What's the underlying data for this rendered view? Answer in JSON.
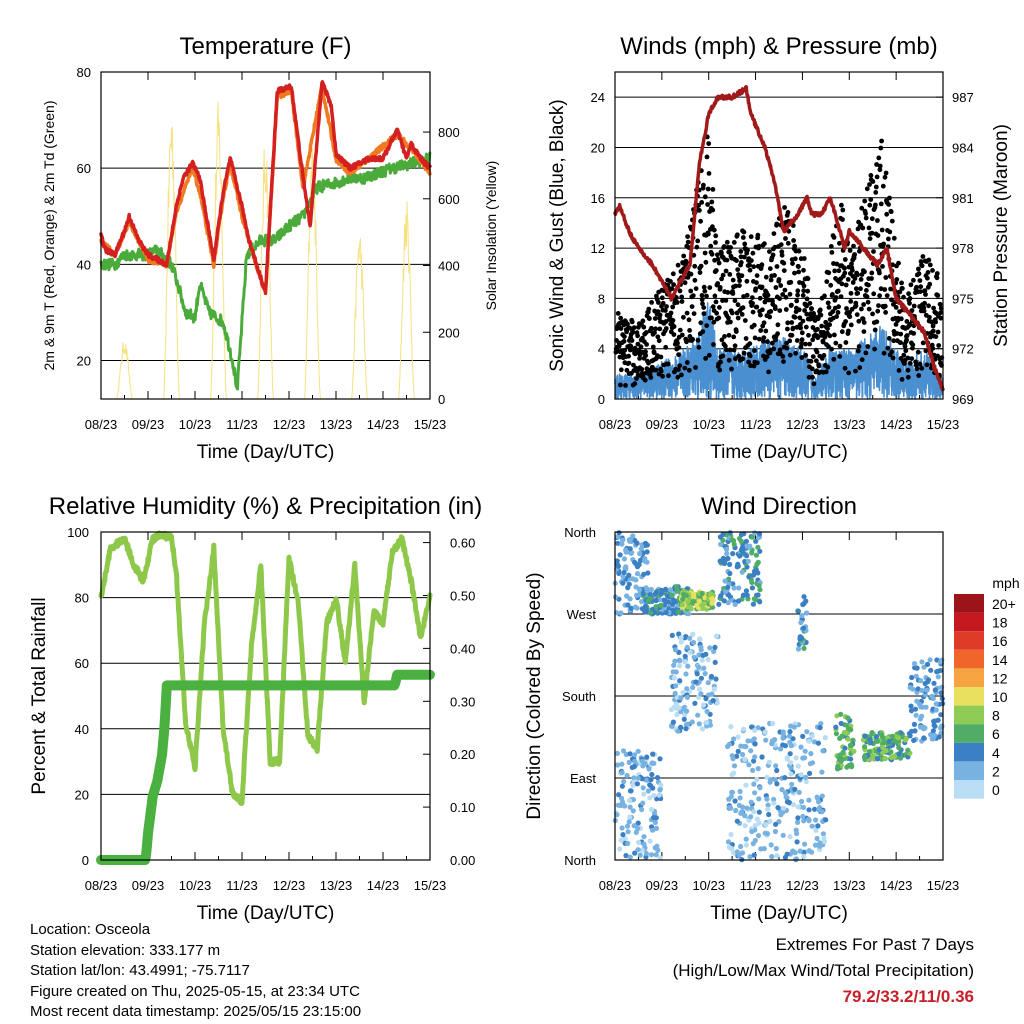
{
  "colors": {
    "temp_red": "#d42020",
    "temp_orange": "#f07a20",
    "dewpoint_green": "#4aaa3a",
    "solar_yellow": "#f5e07a",
    "wind_blue": "#4a90d0",
    "gust_black": "#000000",
    "pressure_maroon": "#a01a1a",
    "rh_green": "#8ec84a",
    "precip_green": "#4ab040",
    "extremes_red": "#c8202a"
  },
  "info": {
    "location": "Location: Osceola",
    "elevation": "Station elevation: 333.177 m",
    "latlon": "Station lat/lon: 43.4991; -75.7117",
    "created": "Figure created on Thu, 2025-05-15, at 23:34 UTC",
    "recent": "Most recent data timestamp: 2025/05/15 23:15:00"
  },
  "extremes": {
    "line1": "Extremes For Past 7 Days",
    "line2": "(High/Low/Max Wind/Total Precipitation)",
    "values": "79.2/33.2/11/0.36"
  },
  "chart_data": [
    {
      "id": "temperature",
      "type": "line",
      "title": "Temperature (F)",
      "xlabel": "Time (Day/UTC)",
      "ylabel": "2m & 9m T (Red, Orange) & 2m Td (Green)",
      "y2label": "Solar Insolation (Yellow)",
      "x_ticks": [
        "08/23",
        "09/23",
        "10/23",
        "11/23",
        "12/23",
        "13/23",
        "14/23",
        "15/23"
      ],
      "xlim": [
        0,
        7
      ],
      "ylim": [
        12,
        80
      ],
      "y_ticks": [
        20,
        40,
        60,
        80
      ],
      "y2lim": [
        0,
        980
      ],
      "y2_ticks": [
        0,
        200,
        400,
        600,
        800
      ],
      "grid": true,
      "series": [
        {
          "name": "2m T",
          "color": "#d42020",
          "x": [
            0,
            0.1,
            0.3,
            0.5,
            0.6,
            0.8,
            1.0,
            1.2,
            1.4,
            1.6,
            1.75,
            1.95,
            2.1,
            2.4,
            2.6,
            2.75,
            3.0,
            3.15,
            3.5,
            3.75,
            4.05,
            4.3,
            4.45,
            4.7,
            4.9,
            5.0,
            5.3,
            5.7,
            6.0,
            6.3,
            6.5,
            6.6,
            6.8,
            7.0
          ],
          "y": [
            46,
            43,
            42,
            47,
            50,
            45,
            42,
            41,
            40,
            52,
            58,
            61,
            58,
            41,
            55,
            62,
            52,
            45,
            34,
            76,
            77,
            58,
            48,
            78,
            73,
            63,
            60,
            62,
            62,
            68,
            62,
            65,
            62,
            60
          ]
        },
        {
          "name": "9m T",
          "color": "#f07a20",
          "x": [
            0,
            0.3,
            0.6,
            1.0,
            1.4,
            1.6,
            1.95,
            2.1,
            2.4,
            2.6,
            2.75,
            3.0,
            3.3,
            3.5,
            3.75,
            4.05,
            4.3,
            4.7,
            5.0,
            5.3,
            5.7,
            6.3,
            6.7,
            7.0
          ],
          "y": [
            45,
            42,
            49,
            41,
            40,
            51,
            60,
            55,
            40,
            54,
            61,
            50,
            40,
            34,
            75,
            76,
            56,
            77,
            62,
            59,
            62,
            67,
            63,
            59
          ]
        },
        {
          "name": "2m Td",
          "color": "#4aaa3a",
          "x": [
            0,
            0.3,
            0.5,
            0.8,
            1.0,
            1.2,
            1.5,
            1.6,
            1.8,
            2.0,
            2.1,
            2.3,
            2.6,
            2.8,
            2.9,
            3.1,
            3.4,
            3.7,
            4.0,
            4.3,
            4.6,
            5.0,
            5.3,
            5.6,
            5.9,
            6.2,
            6.6,
            7.0
          ],
          "y": [
            40,
            40,
            42,
            42,
            42,
            43,
            40,
            37,
            30,
            29,
            36,
            30,
            28,
            20,
            14,
            42,
            45,
            45,
            48,
            50,
            56,
            57,
            58,
            58,
            59,
            60,
            61,
            62
          ]
        },
        {
          "name": "Solar",
          "color": "#f5e07a",
          "axis": "y2",
          "peaks_x": [
            0.5,
            1.5,
            2.5,
            3.5,
            4.5,
            5.5,
            6.5
          ],
          "peaks_y": [
            180,
            900,
            900,
            800,
            780,
            520,
            600
          ]
        }
      ]
    },
    {
      "id": "winds",
      "type": "scatter",
      "title": "Winds (mph) & Pressure (mb)",
      "xlabel": "Time (Day/UTC)",
      "ylabel": "Sonic Wind & Gust (Blue, Black)",
      "y2label": "Station Pressure (Maroon)",
      "x_ticks": [
        "08/23",
        "09/23",
        "10/23",
        "11/23",
        "12/23",
        "13/23",
        "14/23",
        "15/23"
      ],
      "xlim": [
        0,
        7
      ],
      "ylim": [
        0,
        26
      ],
      "y_ticks": [
        0,
        4,
        8,
        12,
        16,
        20,
        24
      ],
      "y2lim": [
        969,
        988.5
      ],
      "y2_ticks": [
        969,
        972,
        975,
        978,
        981,
        984,
        987
      ],
      "grid": true,
      "series": [
        {
          "name": "Gust envelope",
          "color": "#000000",
          "x": [
            0,
            0.5,
            1.0,
            1.5,
            1.8,
            2.0,
            2.2,
            2.5,
            2.9,
            3.3,
            3.6,
            4.0,
            4.3,
            4.6,
            4.8,
            5.0,
            5.4,
            5.7,
            6.0,
            6.2,
            6.6,
            6.9,
            7.0
          ],
          "y": [
            7,
            6,
            9,
            12,
            18,
            22,
            12,
            13,
            14,
            12,
            16,
            12,
            6,
            12,
            17,
            12,
            17,
            21,
            12,
            8,
            12,
            10,
            6
          ]
        },
        {
          "name": "Sonic wind envelope",
          "color": "#4a90d0",
          "x": [
            0,
            0.5,
            1.0,
            1.5,
            1.8,
            2.0,
            2.2,
            2.5,
            2.9,
            3.3,
            3.6,
            4.0,
            4.3,
            4.6,
            5.0,
            5.4,
            5.7,
            6.0,
            6.2,
            6.6,
            7.0
          ],
          "y": [
            2,
            2,
            3,
            4,
            6,
            8,
            4,
            4,
            4,
            5,
            5,
            4,
            2,
            4,
            4,
            5,
            6,
            4,
            3,
            4,
            2
          ]
        },
        {
          "name": "Pressure",
          "color": "#a01a1a",
          "axis": "y2",
          "x": [
            0,
            0.1,
            0.3,
            0.5,
            0.8,
            1.0,
            1.2,
            1.4,
            1.6,
            1.8,
            2.0,
            2.2,
            2.5,
            2.8,
            2.9,
            3.05,
            3.2,
            3.4,
            3.6,
            3.9,
            4.1,
            4.2,
            4.4,
            4.6,
            4.8,
            4.9,
            5.0,
            5.3,
            5.6,
            5.8,
            6.0,
            6.3,
            6.6,
            6.8,
            7.0
          ],
          "y": [
            980,
            980.5,
            979,
            978,
            977,
            976,
            975,
            976,
            977,
            983,
            986,
            987,
            987,
            987.5,
            986,
            985,
            984,
            982,
            979,
            980,
            981,
            980,
            980,
            981,
            979,
            978,
            979,
            978,
            977,
            978,
            975,
            974,
            973,
            971,
            969.5
          ]
        }
      ]
    },
    {
      "id": "humidity",
      "type": "line",
      "title": "Relative Humidity (%) & Precipitation (in)",
      "xlabel": "Time (Day/UTC)",
      "ylabel": "Percent & Total Rainfall",
      "x_ticks": [
        "08/23",
        "09/23",
        "10/23",
        "11/23",
        "12/23",
        "13/23",
        "14/23",
        "15/23"
      ],
      "xlim": [
        0,
        7
      ],
      "ylim": [
        0,
        100
      ],
      "y_ticks": [
        0,
        20,
        40,
        60,
        80,
        100
      ],
      "y2lim": [
        0,
        0.62
      ],
      "y2_ticks": [
        "0.00",
        "0.10",
        "0.20",
        "0.30",
        "0.40",
        "0.50",
        "0.60"
      ],
      "grid": true,
      "series": [
        {
          "name": "RH",
          "color": "#8ec84a",
          "x": [
            0,
            0.2,
            0.5,
            0.7,
            0.9,
            1.1,
            1.3,
            1.5,
            1.6,
            1.8,
            2.0,
            2.2,
            2.4,
            2.6,
            2.8,
            3.0,
            3.2,
            3.4,
            3.6,
            3.8,
            4.0,
            4.2,
            4.4,
            4.6,
            4.8,
            5.0,
            5.2,
            5.4,
            5.6,
            5.8,
            6.0,
            6.2,
            6.4,
            6.6,
            6.8,
            7.0
          ],
          "y": [
            80,
            95,
            98,
            90,
            85,
            98,
            99,
            98,
            88,
            42,
            28,
            72,
            95,
            40,
            20,
            18,
            65,
            90,
            30,
            30,
            92,
            78,
            38,
            34,
            72,
            80,
            60,
            90,
            48,
            76,
            72,
            94,
            98,
            85,
            68,
            80
          ]
        },
        {
          "name": "Total Rainfall",
          "color": "#4ab040",
          "axis": "y2",
          "x": [
            0,
            0.95,
            1.0,
            1.1,
            1.2,
            1.3,
            1.35,
            1.4,
            1.5,
            2.0,
            3.0,
            4.0,
            5.0,
            6.0,
            6.25,
            6.3,
            6.5,
            7.0
          ],
          "y": [
            0,
            0,
            0.05,
            0.12,
            0.15,
            0.2,
            0.25,
            0.33,
            0.33,
            0.33,
            0.33,
            0.33,
            0.33,
            0.33,
            0.33,
            0.35,
            0.35,
            0.35
          ]
        }
      ]
    },
    {
      "id": "direction",
      "type": "scatter",
      "title": "Wind Direction",
      "xlabel": "Time (Day/UTC)",
      "ylabel": "Direction (Colored By Speed)",
      "x_ticks": [
        "08/23",
        "09/23",
        "10/23",
        "11/23",
        "12/23",
        "13/23",
        "14/23",
        "15/23"
      ],
      "xlim": [
        0,
        7
      ],
      "ylim": [
        0,
        360
      ],
      "y_ticks": [
        "North",
        "East",
        "South",
        "West",
        "North"
      ],
      "legend": {
        "title": "mph",
        "placement": "right",
        "labels": [
          "20+",
          "18",
          "16",
          "14",
          "12",
          "10",
          "8",
          "6",
          "4",
          "2",
          "0"
        ],
        "colors": [
          "#9b1518",
          "#c4191f",
          "#de3a28",
          "#f0652a",
          "#f6a341",
          "#e9e060",
          "#8fcc55",
          "#50ad65",
          "#3b7fc4",
          "#78b2e0",
          "#b9ddf4"
        ]
      },
      "clusters": [
        {
          "x": [
            0,
            0.7
          ],
          "y": [
            270,
            360
          ],
          "speed": 3
        },
        {
          "x": [
            0.6,
            1.6
          ],
          "y": [
            270,
            300
          ],
          "speed": 4
        },
        {
          "x": [
            1.4,
            2.1
          ],
          "y": [
            275,
            295
          ],
          "speed": 8
        },
        {
          "x": [
            2.2,
            3.1
          ],
          "y": [
            280,
            360
          ],
          "speed": 4
        },
        {
          "x": [
            3.9,
            4.1
          ],
          "y": [
            230,
            290
          ],
          "speed": 4
        },
        {
          "x": [
            4.7,
            5.1
          ],
          "y": [
            100,
            160
          ],
          "speed": 6
        },
        {
          "x": [
            5.3,
            6.3
          ],
          "y": [
            110,
            140
          ],
          "speed": 6
        },
        {
          "x": [
            6.3,
            7.0
          ],
          "y": [
            130,
            220
          ],
          "speed": 3
        },
        {
          "x": [
            0,
            1.0
          ],
          "y": [
            0,
            120
          ],
          "speed": 2
        },
        {
          "x": [
            2.4,
            4.5
          ],
          "y": [
            0,
            150
          ],
          "speed": 2
        },
        {
          "x": [
            1.2,
            2.2
          ],
          "y": [
            140,
            250
          ],
          "speed": 2
        }
      ]
    }
  ]
}
